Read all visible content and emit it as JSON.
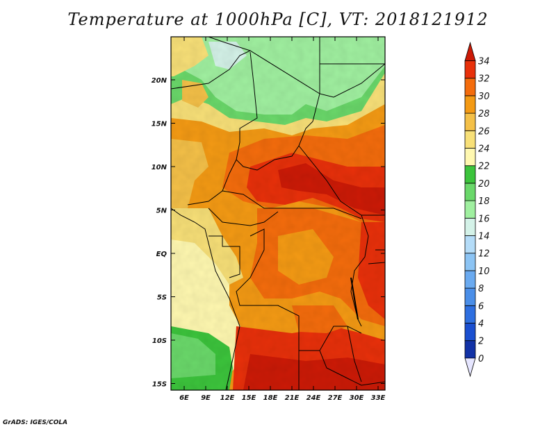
{
  "title": "Temperature at 1000hPa [C], VT: 2018121912",
  "credit": "GrADS: IGES/COLA",
  "map": {
    "region": "Central Africa",
    "lon_ticks": [
      "6E",
      "9E",
      "12E",
      "15E",
      "18E",
      "21E",
      "24E",
      "27E",
      "30E",
      "33E"
    ],
    "lat_ticks": [
      "20N",
      "15N",
      "10N",
      "5N",
      "EQ",
      "5S",
      "10S",
      "15S"
    ]
  },
  "colorbar": {
    "levels": [
      "0",
      "2",
      "4",
      "6",
      "8",
      "10",
      "12",
      "14",
      "16",
      "18",
      "20",
      "22",
      "24",
      "26",
      "28",
      "30",
      "32",
      "34"
    ],
    "colors": [
      "#0a1a6e",
      "#1232a6",
      "#1a4fd0",
      "#2e6fe0",
      "#4a8ee8",
      "#6aaaf0",
      "#8cc4f4",
      "#b4dcf8",
      "#d4f2e8",
      "#a0f0a0",
      "#6ad86a",
      "#3cc43c",
      "#fff8b0",
      "#f8e078",
      "#f4c048",
      "#f49a14",
      "#f46c0c",
      "#e8300a",
      "#cc1a06"
    ]
  }
}
